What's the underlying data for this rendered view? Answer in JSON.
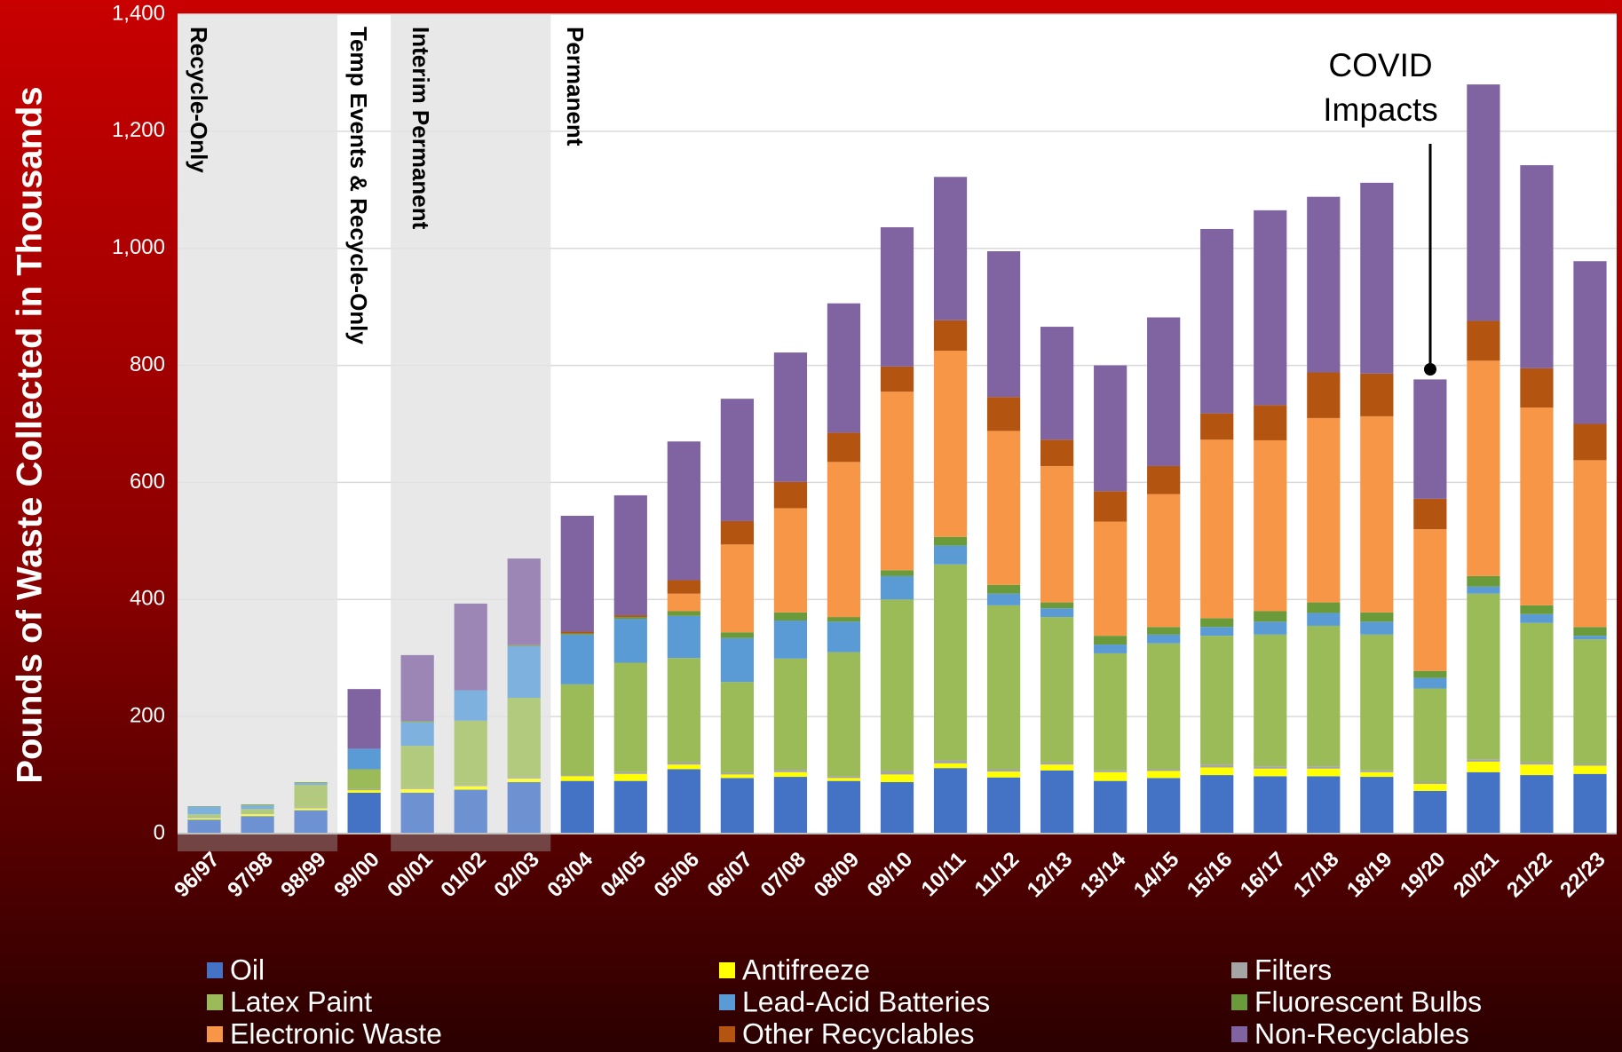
{
  "chart_data": {
    "type": "stacked_bar",
    "ylabel": "Pounds of Waste Collected in Thousands",
    "categories": [
      "96/97",
      "97/98",
      "98/99",
      "99/00",
      "00/01",
      "01/02",
      "02/03",
      "03/04",
      "04/05",
      "05/06",
      "06/07",
      "07/08",
      "08/09",
      "09/10",
      "10/11",
      "11/12",
      "12/13",
      "13/14",
      "14/15",
      "15/16",
      "16/17",
      "17/18",
      "18/19",
      "19/20",
      "20/21",
      "21/22",
      "22/23"
    ],
    "series": [
      {
        "name": "Oil",
        "color": "#4472c4",
        "values": [
          24,
          30,
          40,
          70,
          70,
          75,
          88,
          90,
          90,
          110,
          95,
          97,
          90,
          88,
          112,
          96,
          108,
          90,
          95,
          100,
          98,
          98,
          97,
          73,
          105,
          100,
          102
        ]
      },
      {
        "name": "Antifreeze",
        "color": "#ffff00",
        "values": [
          2,
          3,
          3,
          4,
          6,
          6,
          6,
          8,
          12,
          8,
          6,
          8,
          5,
          13,
          8,
          10,
          10,
          15,
          12,
          13,
          13,
          13,
          8,
          12,
          18,
          18,
          14
        ]
      },
      {
        "name": "Filters",
        "color": "#a5a5a5",
        "values": [
          1,
          1,
          2,
          2,
          2,
          2,
          3,
          2,
          3,
          4,
          3,
          4,
          3,
          6,
          5,
          4,
          4,
          3,
          3,
          5,
          4,
          4,
          3,
          3,
          4,
          4,
          3
        ]
      },
      {
        "name": "Latex Paint",
        "color": "#9bbb59",
        "values": [
          6,
          8,
          38,
          34,
          72,
          110,
          135,
          155,
          187,
          178,
          155,
          190,
          212,
          293,
          335,
          280,
          248,
          200,
          215,
          220,
          225,
          240,
          232,
          160,
          283,
          238,
          213
        ]
      },
      {
        "name": "Lead-Acid Batteries",
        "color": "#5b9bd5",
        "values": [
          13,
          6,
          3,
          35,
          40,
          52,
          88,
          85,
          75,
          72,
          75,
          65,
          52,
          40,
          32,
          20,
          15,
          15,
          15,
          15,
          22,
          22,
          22,
          18,
          12,
          15,
          6
        ]
      },
      {
        "name": "Fluorescent Bulbs",
        "color": "#6b9a3a",
        "values": [
          1,
          2,
          2,
          0,
          2,
          0,
          2,
          2,
          3,
          8,
          10,
          14,
          8,
          10,
          15,
          15,
          10,
          15,
          13,
          15,
          18,
          18,
          16,
          12,
          18,
          15,
          15
        ]
      },
      {
        "name": "Electronic Waste",
        "color": "#f79646",
        "values": [
          0,
          0,
          0,
          0,
          0,
          0,
          0,
          0,
          0,
          30,
          150,
          178,
          265,
          305,
          318,
          263,
          233,
          195,
          227,
          305,
          292,
          315,
          335,
          242,
          368,
          338,
          285
        ]
      },
      {
        "name": "Other Recyclables",
        "color": "#b35410",
        "values": [
          0,
          0,
          0,
          0,
          0,
          0,
          0,
          3,
          3,
          23,
          40,
          45,
          50,
          43,
          52,
          58,
          45,
          52,
          48,
          45,
          60,
          78,
          73,
          52,
          68,
          67,
          62
        ]
      },
      {
        "name": "Non-Recyclables",
        "color": "#8064a2",
        "values": [
          0,
          0,
          0,
          102,
          113,
          148,
          148,
          198,
          205,
          237,
          209,
          221,
          221,
          238,
          245,
          249,
          193,
          215,
          254,
          315,
          333,
          300,
          326,
          204,
          404,
          347,
          278
        ]
      }
    ],
    "ylim": [
      0,
      1400
    ],
    "yticks": [
      0,
      200,
      400,
      600,
      800,
      {
        "value": 1000,
        "label": "1,000"
      },
      {
        "value": 1200,
        "label": "1,200"
      },
      {
        "value": 1400,
        "label": "1,400"
      }
    ],
    "grid": true,
    "annotations": [
      "Recycle-Only",
      "Temp Events & Recycle-Only",
      "Interim Permanent",
      "Permanent",
      "COVID",
      "Impacts"
    ]
  }
}
